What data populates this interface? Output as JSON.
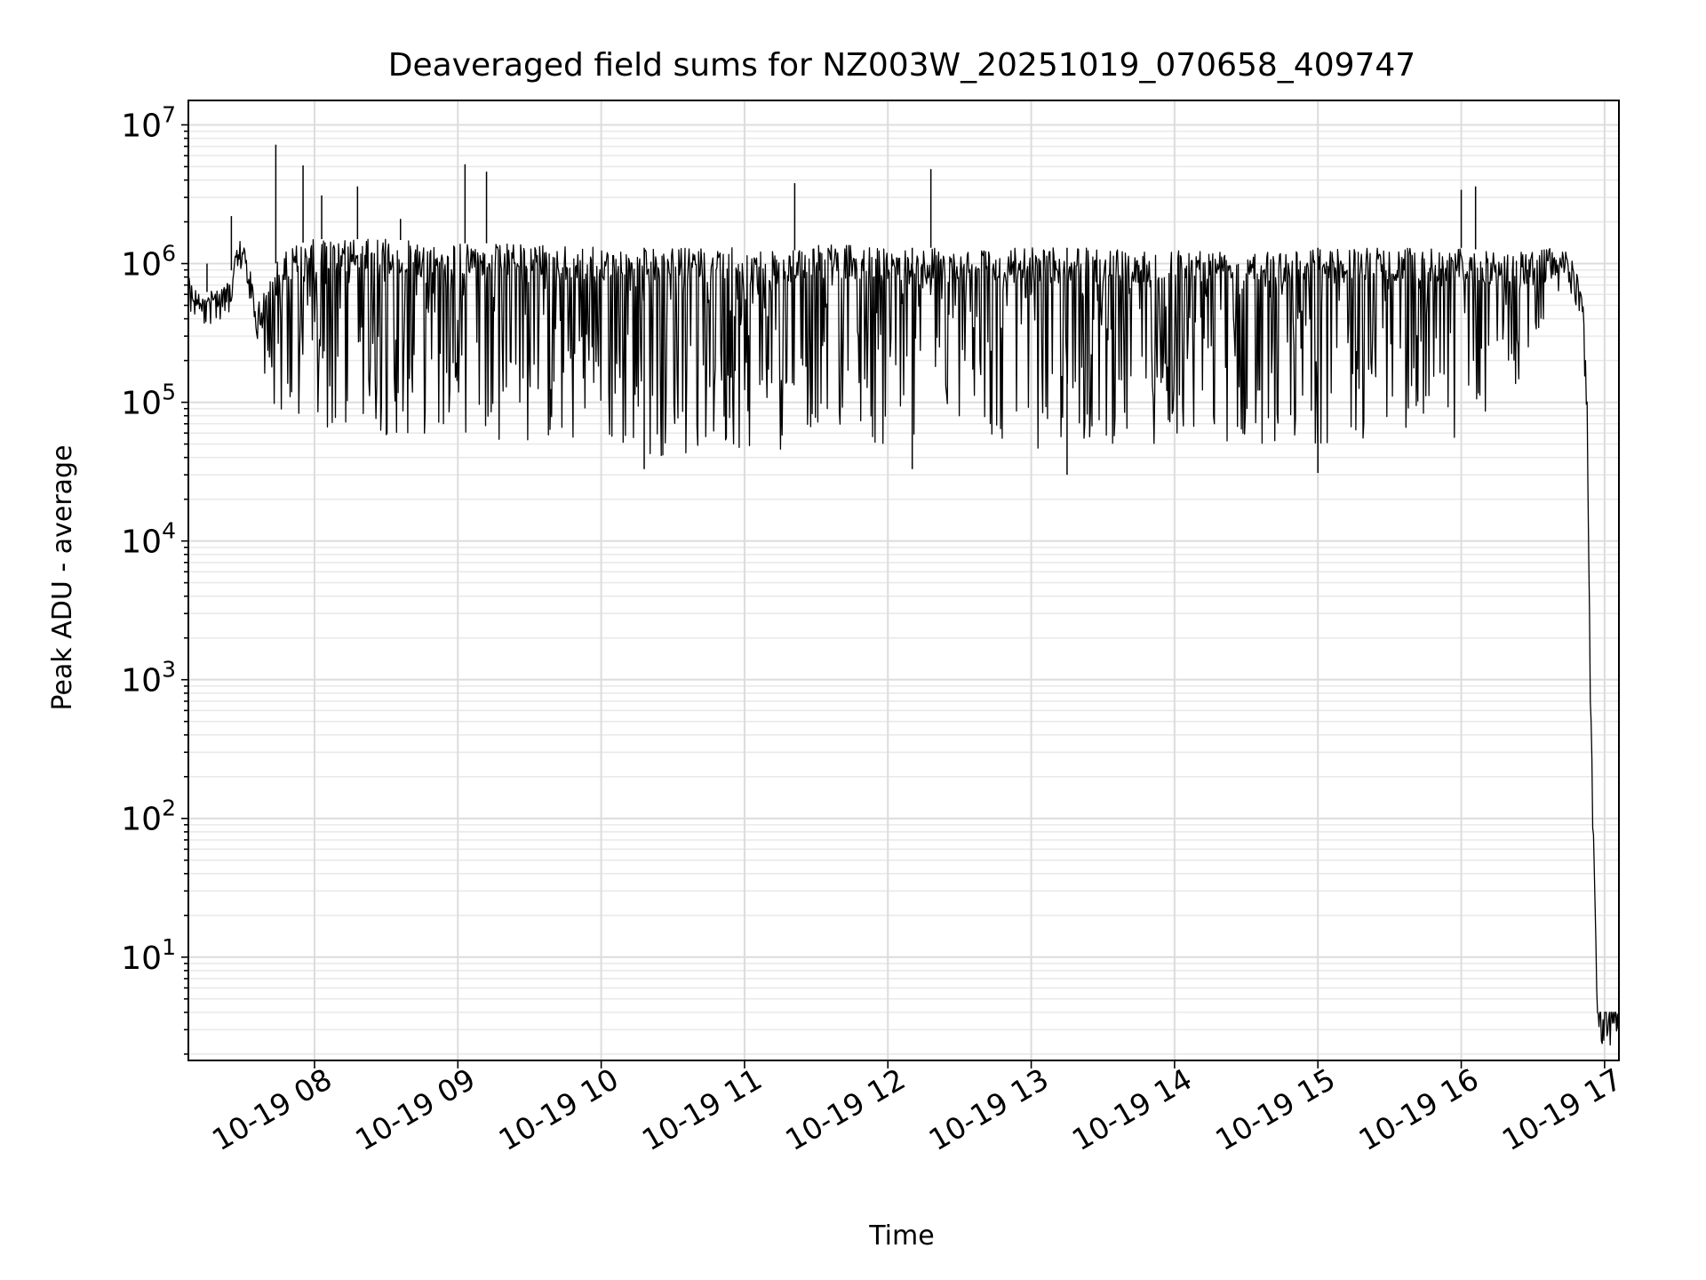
{
  "chart_data": {
    "type": "line",
    "title": "Deaveraged field sums for NZ003W_20251019_070658_409747",
    "xlabel": "Time",
    "ylabel": "Peak ADU - average",
    "yscale": "log",
    "ylim": [
      1.8,
      15000000
    ],
    "xlim_hours": [
      7.12,
      17.1
    ],
    "x_ticks": [
      {
        "hour": 8,
        "label": "10-19 08"
      },
      {
        "hour": 9,
        "label": "10-19 09"
      },
      {
        "hour": 10,
        "label": "10-19 10"
      },
      {
        "hour": 11,
        "label": "10-19 11"
      },
      {
        "hour": 12,
        "label": "10-19 12"
      },
      {
        "hour": 13,
        "label": "10-19 13"
      },
      {
        "hour": 14,
        "label": "10-19 14"
      },
      {
        "hour": 15,
        "label": "10-19 15"
      },
      {
        "hour": 16,
        "label": "10-19 16"
      },
      {
        "hour": 17,
        "label": "10-19 17"
      }
    ],
    "y_ticks": [
      {
        "value": 10,
        "base": "10",
        "exp": "1"
      },
      {
        "value": 100,
        "base": "10",
        "exp": "2"
      },
      {
        "value": 1000,
        "base": "10",
        "exp": "3"
      },
      {
        "value": 10000,
        "base": "10",
        "exp": "4"
      },
      {
        "value": 100000,
        "base": "10",
        "exp": "5"
      },
      {
        "value": 1000000,
        "base": "10",
        "exp": "6"
      },
      {
        "value": 10000000,
        "base": "10",
        "exp": "7"
      }
    ],
    "grid": true,
    "series": [
      {
        "name": "deaveraged field sum",
        "color": "#000000",
        "x_hours": [
          7.12,
          7.2,
          7.3,
          7.4,
          7.5,
          7.55,
          7.6,
          7.7,
          7.8,
          8.0,
          8.5,
          9.0,
          9.5,
          10.0,
          10.5,
          11.0,
          11.3,
          11.5,
          12.0,
          12.5,
          13.0,
          13.5,
          14.0,
          14.5,
          15.0,
          15.5,
          16.0,
          16.3,
          16.6,
          16.75,
          16.8,
          16.85,
          16.88,
          16.9,
          16.92,
          16.95,
          17.1
        ],
        "upper_envelope": [
          800000,
          600000,
          650000,
          750000,
          1800000,
          900000,
          500000,
          900000,
          1300000,
          1500000,
          1500000,
          1400000,
          1400000,
          1300000,
          1300000,
          1300000,
          1200000,
          1400000,
          1300000,
          1300000,
          1300000,
          1300000,
          1300000,
          1300000,
          1300000,
          1300000,
          1300000,
          1200000,
          1300000,
          1200000,
          900000,
          500000,
          100000,
          1000,
          100,
          4,
          4
        ],
        "lower_envelope": [
          500000,
          500000,
          550000,
          600000,
          900000,
          500000,
          250000,
          100000,
          60000,
          55000,
          55000,
          60000,
          50000,
          45000,
          40000,
          45000,
          45000,
          70000,
          45000,
          60000,
          45000,
          50000,
          50000,
          50000,
          50000,
          55000,
          55000,
          80000,
          400000,
          900000,
          900000,
          500000,
          100000,
          1000,
          100,
          4,
          4
        ],
        "spikes": [
          {
            "hour": 7.25,
            "value": 1000000
          },
          {
            "hour": 7.42,
            "value": 2200000
          },
          {
            "hour": 7.73,
            "value": 7200000
          },
          {
            "hour": 7.92,
            "value": 5100000
          },
          {
            "hour": 8.05,
            "value": 3100000
          },
          {
            "hour": 8.3,
            "value": 3600000
          },
          {
            "hour": 8.6,
            "value": 2100000
          },
          {
            "hour": 9.05,
            "value": 5200000
          },
          {
            "hour": 9.2,
            "value": 4600000
          },
          {
            "hour": 11.35,
            "value": 3800000
          },
          {
            "hour": 12.3,
            "value": 4800000
          },
          {
            "hour": 16.0,
            "value": 3400000
          },
          {
            "hour": 16.1,
            "value": 3600000
          }
        ],
        "dips": [
          {
            "hour": 12.17,
            "value": 33000
          },
          {
            "hour": 13.25,
            "value": 30000
          },
          {
            "hour": 15.0,
            "value": 31000
          },
          {
            "hour": 10.3,
            "value": 33000
          }
        ]
      }
    ]
  }
}
